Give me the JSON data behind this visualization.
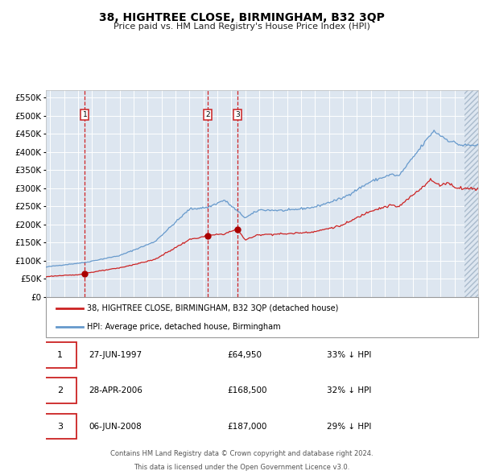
{
  "title": "38, HIGHTREE CLOSE, BIRMINGHAM, B32 3QP",
  "subtitle": "Price paid vs. HM Land Registry's House Price Index (HPI)",
  "legend_line1": "38, HIGHTREE CLOSE, BIRMINGHAM, B32 3QP (detached house)",
  "legend_line2": "HPI: Average price, detached house, Birmingham",
  "footer1": "Contains HM Land Registry data © Crown copyright and database right 2024.",
  "footer2": "This data is licensed under the Open Government Licence v3.0.",
  "transactions": [
    {
      "num": 1,
      "date": "27-JUN-1997",
      "price": 64950,
      "price_str": "£64,950",
      "pct": "33% ↓ HPI"
    },
    {
      "num": 2,
      "date": "28-APR-2006",
      "price": 168500,
      "price_str": "£168,500",
      "pct": "32% ↓ HPI"
    },
    {
      "num": 3,
      "date": "06-JUN-2008",
      "price": 187000,
      "price_str": "£187,000",
      "pct": "29% ↓ HPI"
    }
  ],
  "transaction_dates_decimal": [
    1997.49,
    2006.32,
    2008.44
  ],
  "transaction_prices": [
    64950,
    168500,
    187000
  ],
  "hpi_color": "#6699cc",
  "price_color": "#cc2222",
  "marker_color": "#aa0000",
  "vline_color": "#cc0000",
  "bg_color": "#dde6f0",
  "grid_color": "#ffffff",
  "box_color": "#cc2222",
  "ylim": [
    0,
    570000
  ],
  "yticks": [
    0,
    50000,
    100000,
    150000,
    200000,
    250000,
    300000,
    350000,
    400000,
    450000,
    500000,
    550000
  ],
  "xlim_start": 1994.7,
  "xlim_end": 2025.7,
  "xticks": [
    1995,
    1996,
    1997,
    1998,
    1999,
    2000,
    2001,
    2002,
    2003,
    2004,
    2005,
    2006,
    2007,
    2008,
    2009,
    2010,
    2011,
    2012,
    2013,
    2014,
    2015,
    2016,
    2017,
    2018,
    2019,
    2020,
    2021,
    2022,
    2023,
    2024,
    2025
  ]
}
